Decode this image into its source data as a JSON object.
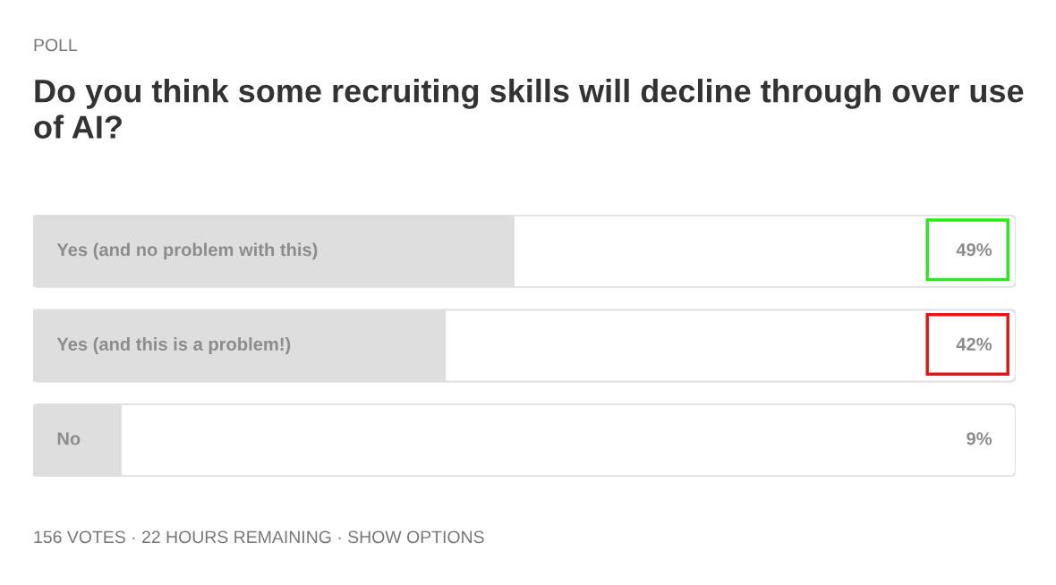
{
  "chart_data": {
    "type": "bar",
    "orientation": "horizontal",
    "title": "Do you think some recruiting skills will decline through over use of AI?",
    "categories": [
      "Yes (and no problem with this)",
      "Yes (and this is a problem!)",
      "No"
    ],
    "values": [
      49,
      42,
      9
    ],
    "color": "#dedede",
    "value_labels": [
      "49%",
      "42%",
      "9%"
    ],
    "xlim": [
      0,
      100
    ],
    "annotations": [
      "POLL",
      "156 VOTES · 22 HOURS REMAINING · SHOW OPTIONS"
    ]
  }
}
